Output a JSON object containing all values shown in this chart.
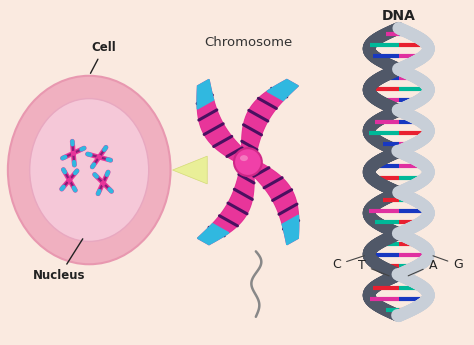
{
  "background_color": "#faeae0",
  "cell_outer_color": "#f0b0c0",
  "cell_outer_edge": "#e898b0",
  "cell_inner_color": "#f5c8d8",
  "cell_inner_edge": "#e8a8c0",
  "chromosome_pink": "#e8359a",
  "chromosome_dark": "#4a1060",
  "chromosome_blue": "#30b8e0",
  "centromere_color": "#f040a8",
  "centromere_edge": "#d02888",
  "dna_backbone_dark": "#505868",
  "dna_backbone_light": "#c8cfd8",
  "rung_colors": [
    "#e82030",
    "#1838c0",
    "#00b898",
    "#e030a0"
  ],
  "title_chromosome": "Chromosome",
  "title_dna": "DNA",
  "label_cell": "Cell",
  "label_nucleus": "Nucleus",
  "label_T": "T",
  "label_A": "A",
  "label_C": "C",
  "label_G": "G",
  "zoom_arrow_color": "#e8f090",
  "tail_color": "#888888"
}
